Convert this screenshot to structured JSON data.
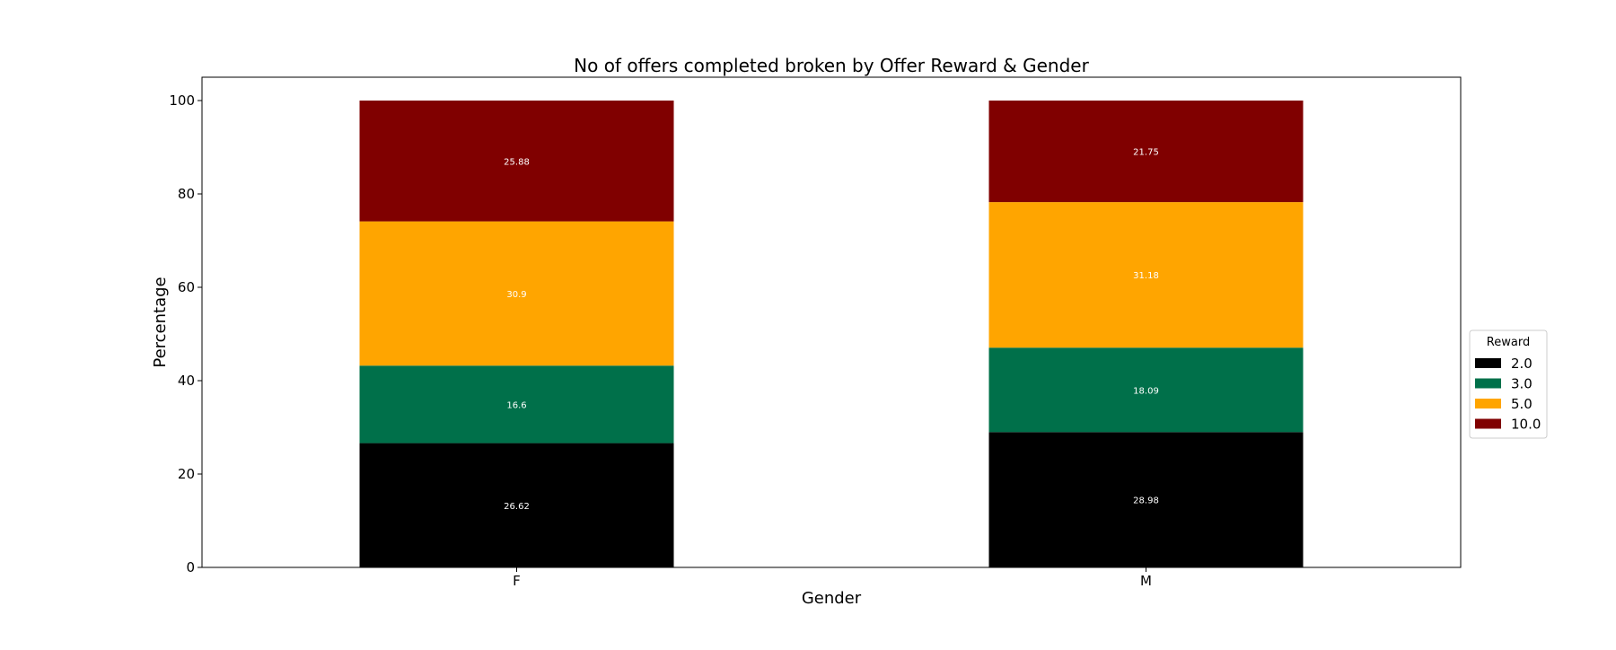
{
  "chart_data": {
    "type": "bar",
    "stacked": true,
    "title": "No of offers completed broken by Offer Reward & Gender",
    "xlabel": "Gender",
    "ylabel": "Percentage",
    "categories": [
      "F",
      "M"
    ],
    "ylim": [
      0,
      105
    ],
    "yticks": [
      "0",
      "20",
      "40",
      "60",
      "80",
      "100"
    ],
    "grid": false,
    "legend": {
      "title": "Reward",
      "placement": "center-right-outside"
    },
    "series": [
      {
        "name": "2.0",
        "color": "#000000",
        "values": [
          26.62,
          28.98
        ],
        "labels": [
          "26.62",
          "28.98"
        ]
      },
      {
        "name": "3.0",
        "color": "#00704a",
        "values": [
          16.6,
          18.09
        ],
        "labels": [
          "16.6",
          "18.09"
        ]
      },
      {
        "name": "5.0",
        "color": "#ffa500",
        "values": [
          30.9,
          31.18
        ],
        "labels": [
          "30.9",
          "31.18"
        ]
      },
      {
        "name": "10.0",
        "color": "#800000",
        "values": [
          25.88,
          21.75
        ],
        "labels": [
          "25.88",
          "21.75"
        ]
      }
    ]
  }
}
